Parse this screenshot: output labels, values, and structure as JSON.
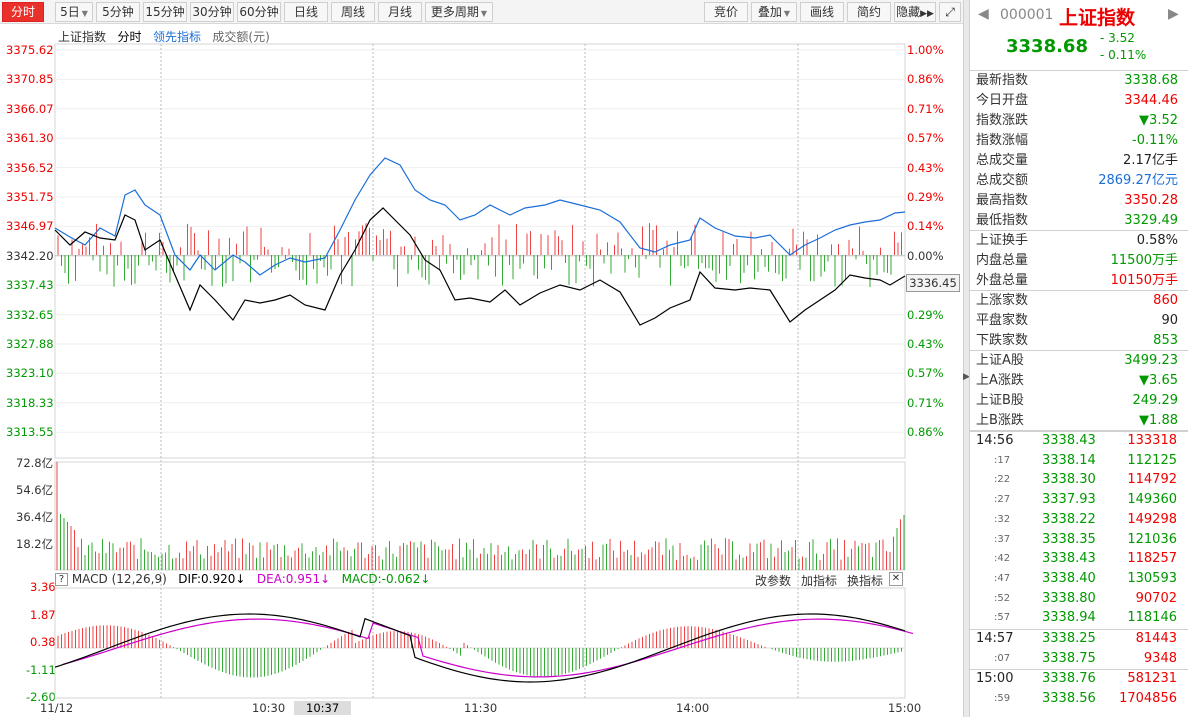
{
  "toolbar": {
    "periods": [
      "分时",
      "5日",
      "5分钟",
      "15分钟",
      "30分钟",
      "60分钟",
      "日线",
      "周线",
      "月线",
      "更多周期"
    ],
    "right_buttons": [
      "竞价",
      "叠加",
      "画线",
      "简约",
      "隐藏"
    ]
  },
  "chart_header": {
    "name": "上证指数",
    "mode": "分时",
    "lead": "领先指标",
    "volume_unit": "成交额(元)"
  },
  "price_axis": {
    "left": [
      "3375.62",
      "3370.85",
      "3366.07",
      "3361.30",
      "3356.52",
      "3351.75",
      "3346.97",
      "3342.20",
      "3337.43",
      "3332.65",
      "3327.88",
      "3323.10",
      "3318.33",
      "3313.55"
    ],
    "right": [
      "1.00%",
      "0.86%",
      "0.71%",
      "0.57%",
      "0.43%",
      "0.29%",
      "0.14%",
      "0.00%",
      "0.29%",
      "0.43%",
      "0.57%",
      "0.71%",
      "0.86%"
    ],
    "last_price_tag": "3336.45"
  },
  "volume_axis": [
    "72.8亿",
    "54.6亿",
    "36.4亿",
    "18.2亿"
  ],
  "macd": {
    "title": "MACD (12,26,9)",
    "dif": "DIF:0.920↓",
    "dea": "DEA:0.951↓",
    "macd": "MACD:-0.062↓",
    "actions": [
      "改参数",
      "加指标",
      "换指标"
    ],
    "axis": [
      "3.36",
      "1.87",
      "0.38",
      "-1.11",
      "-2.60"
    ]
  },
  "time_axis": [
    "11/12",
    "10:30",
    "10:37",
    "11:30",
    "14:00",
    "15:00"
  ],
  "quote": {
    "code": "000001",
    "name": "上证指数",
    "price": "3338.68",
    "change": "- 3.52",
    "change_pct": "- 0.11%",
    "rows": [
      {
        "k": "最新指数",
        "v": "3338.68",
        "c": "green"
      },
      {
        "k": "今日开盘",
        "v": "3344.46",
        "c": "red"
      },
      {
        "k": "指数涨跌",
        "v": "▼3.52",
        "c": "green"
      },
      {
        "k": "指数涨幅",
        "v": "-0.11%",
        "c": "green"
      },
      {
        "k": "总成交量",
        "v": "2.17亿手",
        "c": "black"
      },
      {
        "k": "总成交额",
        "v": "2869.27亿元",
        "c": "blue"
      },
      {
        "k": "最高指数",
        "v": "3350.28",
        "c": "red"
      },
      {
        "k": "最低指数",
        "v": "3329.49",
        "c": "green"
      },
      {
        "k": "上证换手",
        "v": "0.58%",
        "c": "black"
      },
      {
        "k": "内盘总量",
        "v": "11500万手",
        "c": "green"
      },
      {
        "k": "外盘总量",
        "v": "10150万手",
        "c": "red"
      },
      {
        "k": "上涨家数",
        "v": "860",
        "c": "red"
      },
      {
        "k": "平盘家数",
        "v": "90",
        "c": "black"
      },
      {
        "k": "下跌家数",
        "v": "853",
        "c": "green"
      },
      {
        "k": "上证A股",
        "v": "3499.23",
        "c": "green"
      },
      {
        "k": "上A涨跌",
        "v": "▼3.65",
        "c": "green"
      },
      {
        "k": "上证B股",
        "v": "249.29",
        "c": "green"
      },
      {
        "k": "上B涨跌",
        "v": "▼1.88",
        "c": "green"
      }
    ]
  },
  "ticks": [
    {
      "t": "14:56",
      "p": "3338.43",
      "q": "133318"
    },
    {
      "t": ":17",
      "p": "3338.14",
      "q": "112125"
    },
    {
      "t": ":22",
      "p": "3338.30",
      "q": "114792"
    },
    {
      "t": ":27",
      "p": "3337.93",
      "q": "149360"
    },
    {
      "t": ":32",
      "p": "3338.22",
      "q": "149298"
    },
    {
      "t": ":37",
      "p": "3338.35",
      "q": "121036"
    },
    {
      "t": ":42",
      "p": "3338.43",
      "q": "118257"
    },
    {
      "t": ":47",
      "p": "3338.40",
      "q": "130593"
    },
    {
      "t": ":52",
      "p": "3338.80",
      "q": "90702"
    },
    {
      "t": ":57",
      "p": "3338.94",
      "q": "118146"
    },
    {
      "t": "14:57",
      "p": "3338.25",
      "q": "81443"
    },
    {
      "t": ":07",
      "p": "3338.75",
      "q": "9348"
    },
    {
      "t": "15:00",
      "p": "3338.76",
      "q": "581231"
    },
    {
      "t": ":59",
      "p": "3338.56",
      "q": "1704856"
    }
  ],
  "colors": {
    "up": "#e00000",
    "down": "#009900",
    "index_line": "#000000",
    "lead_line": "#1a6ed8",
    "dea": "#cc00cc"
  }
}
